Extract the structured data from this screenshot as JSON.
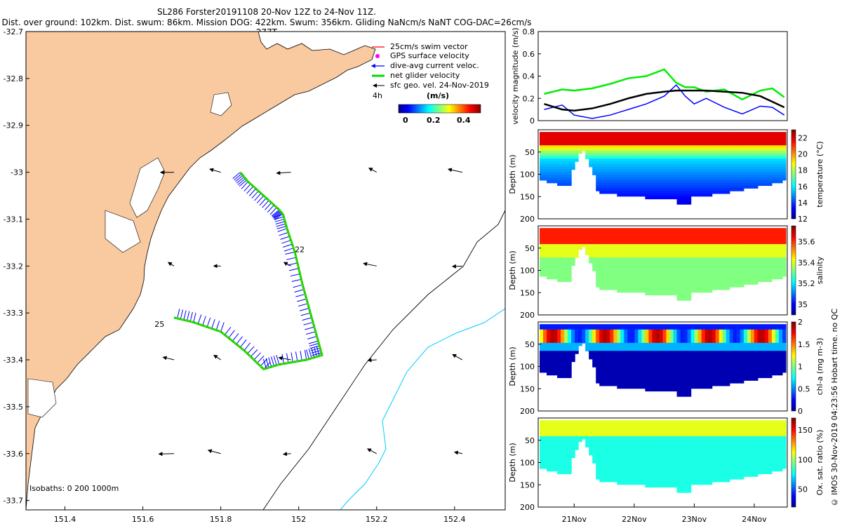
{
  "title_line1": "SL286 Forster20191108 20-Nov 12Z to 24-Nov 11Z.",
  "title_line2": "Dist. over ground: 102km. Dist. swum: 86km. Mission DOG: 422km. Swum: 356km. Gliding NaNcm/s NaNT COG-DAC=26cm/s 277T",
  "side_label": "© IMOS 30-Nov-2019 04:23:56 Hobart time. no QC",
  "colors": {
    "land": "#f9c9a0",
    "track": "#00dd00",
    "dac": "#0000ff",
    "geo": "#000000",
    "iso200": "#000000",
    "iso1000": "#00ccff",
    "speed": "#00ee00"
  },
  "map": {
    "lon_ticks": [
      "151.4",
      "151.6",
      "151.8",
      "152",
      "152.2",
      "152.4"
    ],
    "lat_ticks": [
      "-32.7",
      "-32.8",
      "-32.9",
      "-33",
      "-33.1",
      "-33.2",
      "-33.3",
      "-33.4",
      "-33.5",
      "-33.6",
      "-33.7"
    ],
    "lon_range": [
      151.3,
      152.53
    ],
    "lat_range": [
      -33.72,
      -32.7
    ],
    "isobaths_label": "Isobaths: 0   200  1000m",
    "day_labels": [
      {
        "text": "22",
        "lon": 151.99,
        "lat": -33.17
      },
      {
        "text": "25",
        "lon": 151.63,
        "lat": -33.33
      }
    ],
    "legend": {
      "items": [
        "25cm/s swim vector",
        "GPS surface velocity",
        "dive-avg current veloc.",
        "net glider velocity",
        "sfc geo. vel. 24-Nov-2019"
      ],
      "time_label": "4h",
      "cbar_title": "(m/s)",
      "cbar_ticks": [
        "0",
        "0.2",
        "0.4"
      ]
    },
    "track": [
      [
        151.85,
        -33.0
      ],
      [
        151.87,
        -33.02
      ],
      [
        151.91,
        -33.05
      ],
      [
        151.95,
        -33.08
      ],
      [
        151.96,
        -33.09
      ],
      [
        151.97,
        -33.12
      ],
      [
        151.99,
        -33.17
      ],
      [
        152.01,
        -33.24
      ],
      [
        152.03,
        -33.3
      ],
      [
        152.05,
        -33.36
      ],
      [
        152.06,
        -33.39
      ],
      [
        152.02,
        -33.4
      ],
      [
        151.95,
        -33.41
      ],
      [
        151.91,
        -33.42
      ],
      [
        151.86,
        -33.38
      ],
      [
        151.8,
        -33.34
      ],
      [
        151.73,
        -33.32
      ],
      [
        151.68,
        -33.31
      ]
    ]
  },
  "chart_data": [
    {
      "type": "line",
      "title": "",
      "ylabel": "velocity magnitude (m/s)",
      "ylim": [
        0,
        0.8
      ],
      "yticks": [
        "0",
        "0.2",
        "0.4",
        "0.6",
        "0.8"
      ],
      "x": [
        20.5,
        20.8,
        21.0,
        21.3,
        21.6,
        21.9,
        22.2,
        22.5,
        22.7,
        22.85,
        23.0,
        23.2,
        23.5,
        23.8,
        24.1,
        24.3,
        24.5
      ],
      "series": [
        {
          "name": "net glider velocity",
          "values": [
            0.24,
            0.28,
            0.27,
            0.29,
            0.33,
            0.38,
            0.4,
            0.46,
            0.34,
            0.3,
            0.3,
            0.26,
            0.28,
            0.19,
            0.27,
            0.29,
            0.21
          ]
        },
        {
          "name": "dive-avg current",
          "values": [
            0.1,
            0.14,
            0.05,
            0.02,
            0.05,
            0.1,
            0.15,
            0.22,
            0.32,
            0.22,
            0.15,
            0.2,
            0.12,
            0.06,
            0.13,
            0.12,
            0.05
          ]
        },
        {
          "name": "sfc geo. vel.",
          "values": [
            0.15,
            0.1,
            0.09,
            0.11,
            0.15,
            0.2,
            0.24,
            0.26,
            0.27,
            0.27,
            0.27,
            0.27,
            0.26,
            0.25,
            0.22,
            0.17,
            0.12
          ]
        }
      ]
    },
    {
      "type": "heatmap",
      "ylabel": "Depth (m)",
      "cbar_label": "temperature (°C)",
      "clim": [
        12,
        23
      ],
      "cbar_ticks": [
        "12",
        "14",
        "16",
        "18",
        "20",
        "22"
      ],
      "yticks": [
        "50",
        "100",
        "150",
        "200"
      ]
    },
    {
      "type": "heatmap",
      "ylabel": "Depth (m)",
      "cbar_label": "salinity",
      "clim": [
        34.9,
        35.75
      ],
      "cbar_ticks": [
        "35",
        "35.2",
        "35.4",
        "35.6"
      ],
      "yticks": [
        "50",
        "100",
        "150",
        "200"
      ]
    },
    {
      "type": "heatmap",
      "ylabel": "chl-a (mg m-3)",
      "ylabel2": "Depth (m)",
      "cbar_label": "chl-a (mg m-3)",
      "clim": [
        0,
        2
      ],
      "cbar_ticks": [
        "0",
        "0.5",
        "1",
        "1.5",
        "2"
      ],
      "yticks": [
        "50",
        "100",
        "150",
        "200"
      ]
    },
    {
      "type": "heatmap",
      "ylabel": "Depth (m)",
      "cbar_label": "Ox. sat. ratio (%)",
      "clim": [
        20,
        170
      ],
      "cbar_ticks": [
        "50",
        "100",
        "150"
      ],
      "yticks": [
        "50",
        "100",
        "150",
        "200"
      ],
      "xticks": [
        "21Nov",
        "22Nov",
        "23Nov",
        "24Nov"
      ]
    }
  ]
}
